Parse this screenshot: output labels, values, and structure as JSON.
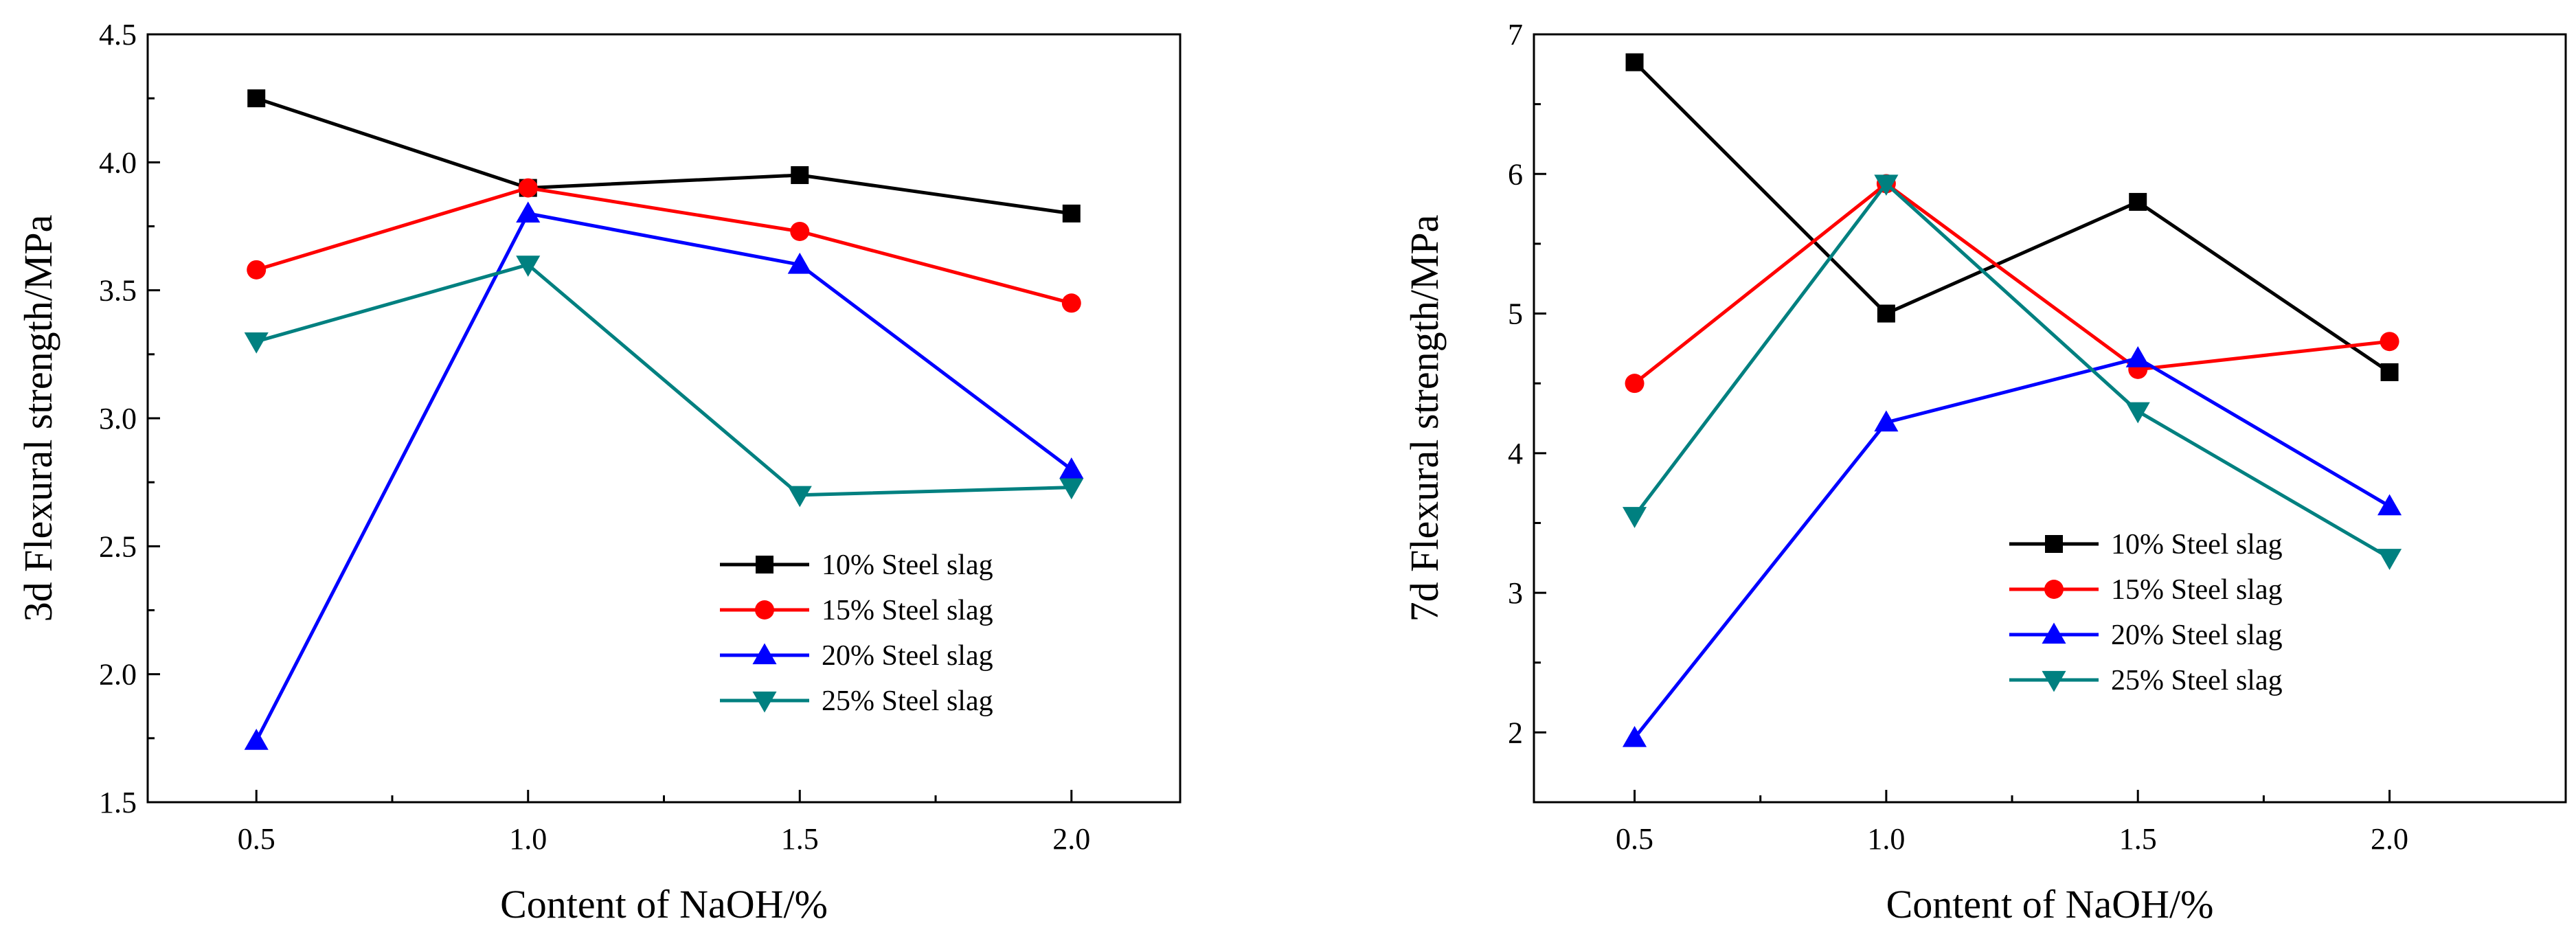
{
  "chart_data": [
    {
      "type": "line",
      "xlabel": "Content of NaOH/%",
      "ylabel": "3d Flexural strength/MPa",
      "x": [
        0.5,
        1.0,
        1.5,
        2.0
      ],
      "xticks": [
        "0.5",
        "1.0",
        "1.5",
        "2.0"
      ],
      "xlim": [
        0.3,
        2.2
      ],
      "ylim": [
        1.5,
        4.5
      ],
      "yticks": [
        "1.5",
        "2.0",
        "2.5",
        "3.0",
        "3.5",
        "4.0",
        "4.5"
      ],
      "legend_position": "lower-right",
      "grid": false,
      "series": [
        {
          "name": "10% Steel slag",
          "values": [
            4.25,
            3.9,
            3.95,
            3.8
          ],
          "color": "#000000",
          "marker": "square"
        },
        {
          "name": "15% Steel slag",
          "values": [
            3.58,
            3.9,
            3.73,
            3.45
          ],
          "color": "#ff0000",
          "marker": "circle"
        },
        {
          "name": "20% Steel slag",
          "values": [
            1.74,
            3.8,
            3.6,
            2.8
          ],
          "color": "#0000ff",
          "marker": "triangle-up"
        },
        {
          "name": "25% Steel slag",
          "values": [
            3.3,
            3.6,
            2.7,
            2.73
          ],
          "color": "#008080",
          "marker": "triangle-down"
        }
      ]
    },
    {
      "type": "line",
      "xlabel": "Content of NaOH/%",
      "ylabel": "7d Flexural strength/MPa",
      "x": [
        0.5,
        1.0,
        1.5,
        2.0
      ],
      "xticks": [
        "0.5",
        "1.0",
        "1.5",
        "2.0"
      ],
      "xlim": [
        0.3,
        2.35
      ],
      "ylim": [
        1.5,
        7.0
      ],
      "yticks": [
        "2",
        "3",
        "4",
        "5",
        "6",
        "7"
      ],
      "legend_position": "lower-right",
      "grid": false,
      "series": [
        {
          "name": "10% Steel slag",
          "values": [
            6.8,
            5.0,
            5.8,
            4.58
          ],
          "color": "#000000",
          "marker": "square"
        },
        {
          "name": "15% Steel slag",
          "values": [
            4.5,
            5.93,
            4.6,
            4.8
          ],
          "color": "#ff0000",
          "marker": "circle"
        },
        {
          "name": "20% Steel slag",
          "values": [
            1.96,
            4.22,
            4.68,
            3.62
          ],
          "color": "#0000ff",
          "marker": "triangle-up"
        },
        {
          "name": "25% Steel slag",
          "values": [
            3.55,
            5.93,
            4.3,
            3.25
          ],
          "color": "#008080",
          "marker": "triangle-down"
        }
      ]
    }
  ]
}
